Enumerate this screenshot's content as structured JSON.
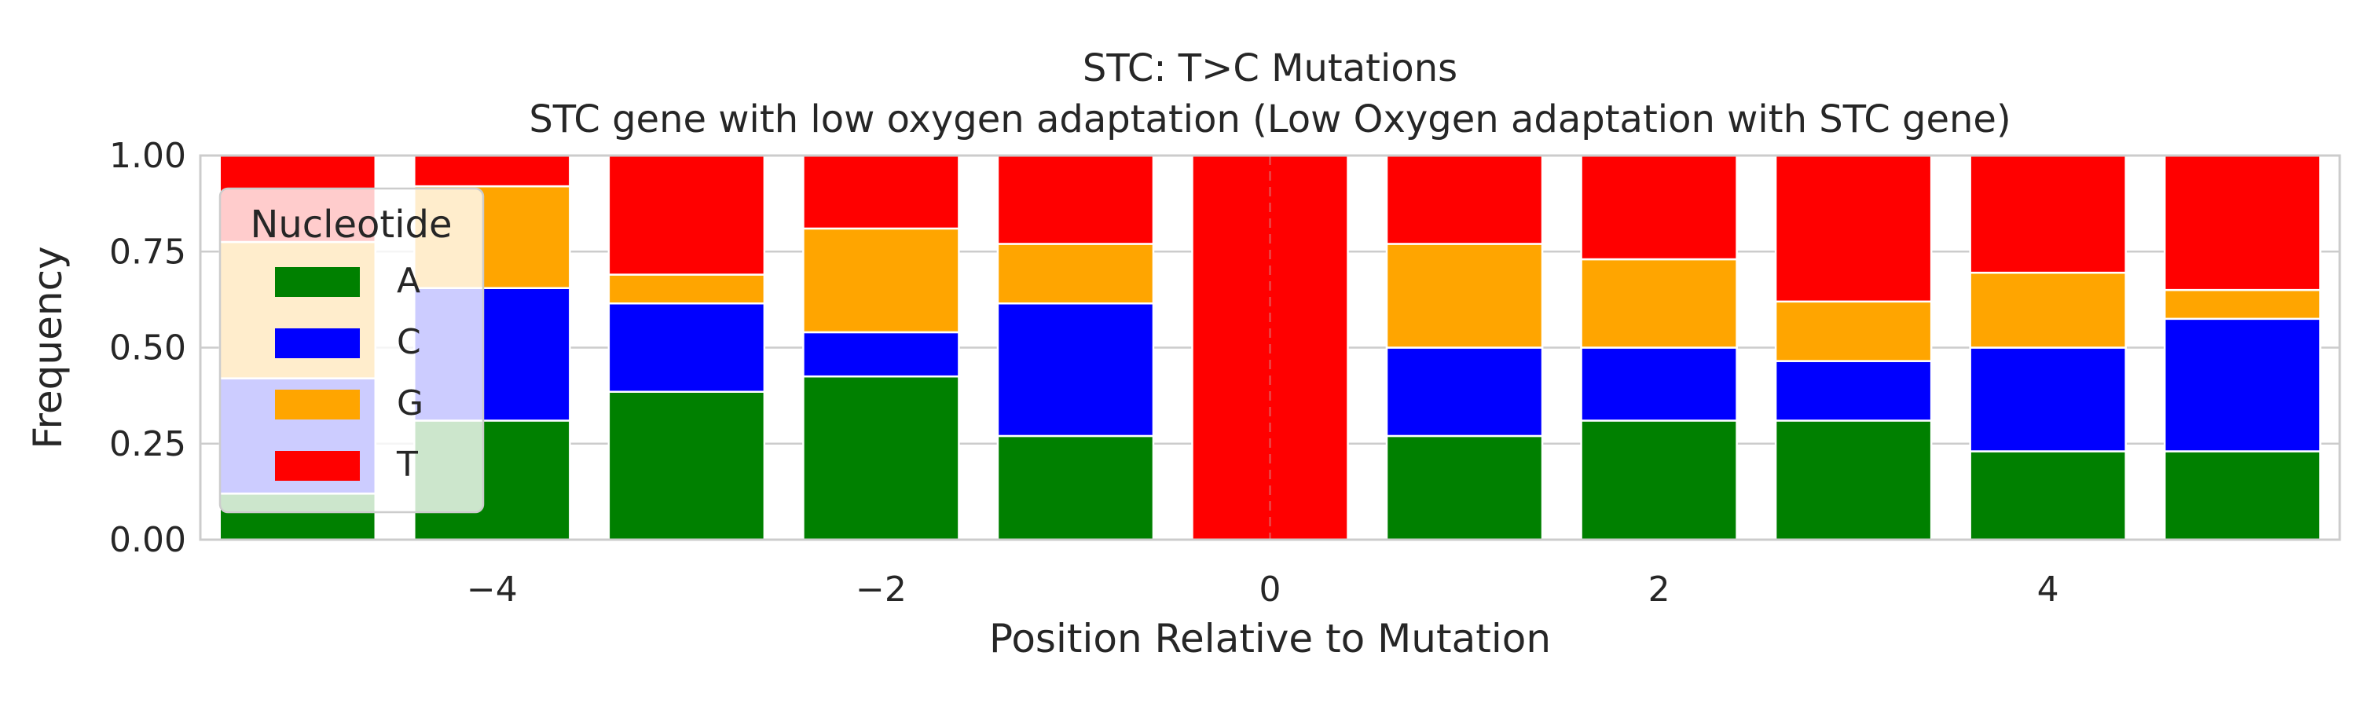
{
  "chart_data": {
    "type": "bar",
    "stacked": true,
    "title": "STC: T>C Mutations",
    "subtitle": "STC gene with low oxygen adaptation (Low Oxygen adaptation with STC gene)",
    "xlabel": "Position Relative to Mutation",
    "ylabel": "Frequency",
    "x": [
      -5,
      -4,
      -3,
      -2,
      -1,
      0,
      1,
      2,
      3,
      4,
      5
    ],
    "xlim": [
      -5.5,
      5.5
    ],
    "ylim": [
      0,
      1
    ],
    "xticks": [
      -4,
      -2,
      0,
      2,
      4
    ],
    "xtick_labels": [
      "−4",
      "−2",
      "0",
      "2",
      "4"
    ],
    "yticks": [
      0,
      0.25,
      0.5,
      0.75,
      1.0
    ],
    "ytick_labels": [
      "0.00",
      "0.25",
      "0.50",
      "0.75",
      "1.00"
    ],
    "grid": true,
    "mutation_line_x": 0,
    "legend": {
      "title": "Nucleotide",
      "position": "upper-left"
    },
    "series": [
      {
        "name": "A",
        "color": "#008000",
        "values": [
          0.12,
          0.31,
          0.385,
          0.425,
          0.27,
          0.0,
          0.27,
          0.31,
          0.31,
          0.23,
          0.23
        ]
      },
      {
        "name": "C",
        "color": "#0000ff",
        "values": [
          0.3,
          0.345,
          0.23,
          0.115,
          0.345,
          0.0,
          0.23,
          0.19,
          0.155,
          0.27,
          0.345
        ]
      },
      {
        "name": "G",
        "color": "#ffa500",
        "values": [
          0.355,
          0.265,
          0.075,
          0.27,
          0.155,
          0.0,
          0.27,
          0.23,
          0.155,
          0.195,
          0.075
        ]
      },
      {
        "name": "T",
        "color": "#ff0000",
        "values": [
          0.225,
          0.08,
          0.31,
          0.19,
          0.23,
          1.0,
          0.23,
          0.27,
          0.38,
          0.305,
          0.35
        ]
      }
    ]
  }
}
